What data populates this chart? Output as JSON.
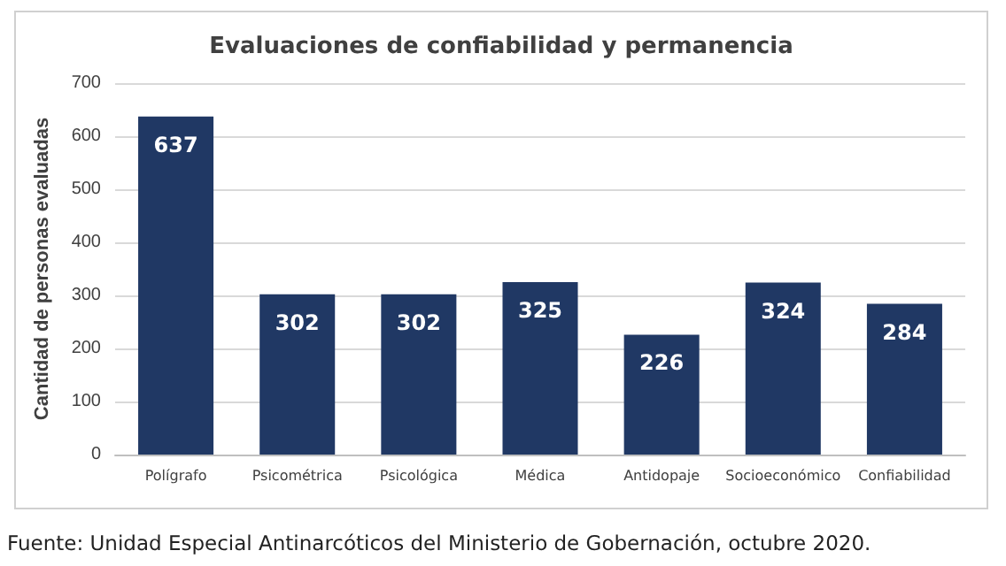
{
  "chart_data": {
    "type": "bar",
    "title": "Evaluaciones de confiabilidad y permanencia",
    "ylabel": "Cantidad de personas evaluadas",
    "categories": [
      "Polígrafo",
      "Psicométrica",
      "Psicológica",
      "Médica",
      "Antidopaje",
      "Socioeconómico",
      "Confiabilidad"
    ],
    "values": [
      637,
      302,
      302,
      325,
      226,
      324,
      284
    ],
    "color": "#203864",
    "ylim": [
      0,
      700
    ],
    "yticks": [
      0,
      100,
      200,
      300,
      400,
      500,
      600,
      700
    ],
    "grid": "y",
    "data_labels": true,
    "annotations": [
      "Fuente: Unidad Especial Antinarcóticos del Ministerio de Gobernación, octubre 2020."
    ]
  }
}
